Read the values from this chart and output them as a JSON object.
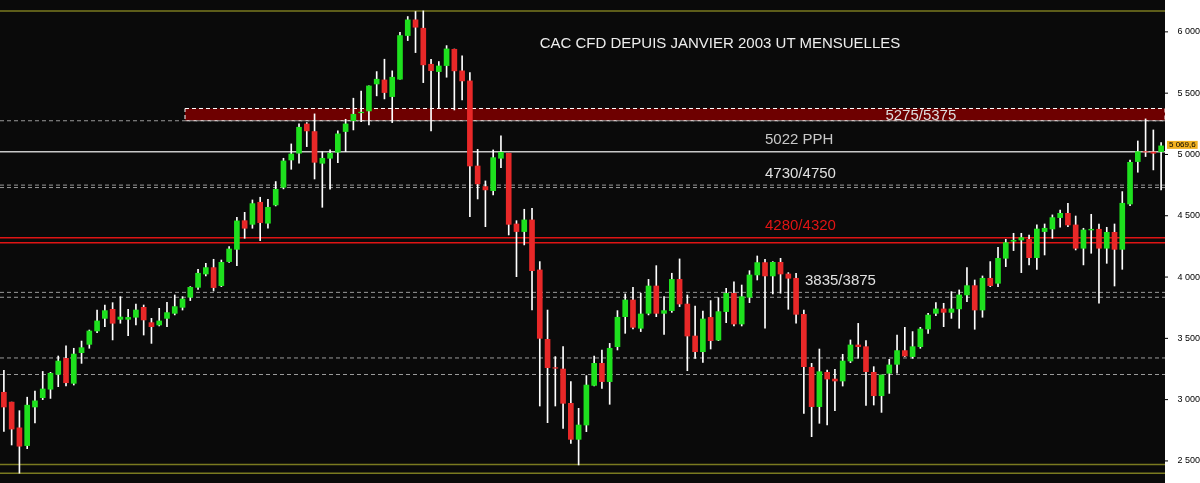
{
  "chart_data": {
    "type": "candlestick",
    "title": "CAC CFD DEPUIS JANVIER 2003 UT MENSUELLES",
    "categories": [
      null,
      null,
      null,
      null,
      null,
      null,
      null,
      null,
      null,
      null,
      null,
      null,
      null,
      null,
      null,
      null,
      null,
      null,
      null,
      null,
      null,
      null,
      null,
      null,
      null,
      null,
      null,
      null,
      null,
      null,
      null,
      null,
      null,
      null,
      null,
      null,
      null,
      null,
      null,
      null,
      null,
      null,
      null,
      null,
      null,
      null,
      null,
      null,
      null,
      null,
      null,
      null,
      null,
      null,
      null,
      null,
      null,
      null,
      null,
      null,
      null,
      null,
      null,
      null,
      null,
      null,
      null,
      null,
      null,
      null,
      null,
      null,
      null,
      null,
      null,
      null,
      null,
      null,
      null,
      null,
      null,
      null,
      null,
      null,
      null,
      null,
      null,
      null,
      null,
      null,
      null,
      null,
      null,
      null,
      null,
      null,
      null,
      null,
      null,
      null,
      null,
      null,
      null,
      null,
      null,
      null,
      null,
      null,
      null,
      null,
      null,
      null,
      null,
      null,
      null,
      null,
      null,
      null,
      null,
      null,
      null,
      null,
      null,
      null,
      null,
      null,
      null,
      null,
      null,
      null,
      null,
      null,
      null,
      null,
      null,
      null,
      null,
      null,
      null,
      null,
      null,
      null,
      null,
      null,
      null,
      null,
      null,
      null,
      null,
      null
    ],
    "ohlc": [
      [
        3060,
        3240,
        2740,
        2940
      ],
      [
        2980,
        2980,
        2630,
        2760
      ],
      [
        2770,
        2910,
        2400,
        2620
      ],
      [
        2625,
        3020,
        2600,
        2955
      ],
      [
        2940,
        3070,
        2810,
        2990
      ],
      [
        3016,
        3230,
        3000,
        3087
      ],
      [
        3085,
        3223,
        3010,
        3215
      ],
      [
        3206,
        3356,
        3106,
        3315
      ],
      [
        3337,
        3438,
        3111,
        3138
      ],
      [
        3133,
        3419,
        3119,
        3372
      ],
      [
        3383,
        3478,
        3296,
        3424
      ],
      [
        3451,
        3568,
        3419,
        3560
      ],
      [
        3560,
        3731,
        3547,
        3642
      ],
      [
        3663,
        3772,
        3595,
        3726
      ],
      [
        3737,
        3791,
        3487,
        3623
      ],
      [
        3655,
        3840,
        3623,
        3674
      ],
      [
        3655,
        3737,
        3522,
        3671
      ],
      [
        3672,
        3780,
        3609,
        3731
      ],
      [
        3753,
        3772,
        3527,
        3650
      ],
      [
        3628,
        3663,
        3459,
        3595
      ],
      [
        3609,
        3745,
        3601,
        3642
      ],
      [
        3663,
        3794,
        3595,
        3710
      ],
      [
        3704,
        3854,
        3691,
        3759
      ],
      [
        3753,
        3840,
        3731,
        3821
      ],
      [
        3835,
        3922,
        3808,
        3916
      ],
      [
        3916,
        4063,
        3900,
        4031
      ],
      [
        4025,
        4112,
        4009,
        4077
      ],
      [
        4077,
        4145,
        3886,
        3914
      ],
      [
        3930,
        4139,
        3922,
        4120
      ],
      [
        4126,
        4248,
        4120,
        4229
      ],
      [
        4226,
        4488,
        4093,
        4458
      ],
      [
        4460,
        4528,
        4316,
        4398
      ],
      [
        4430,
        4629,
        4398,
        4599
      ],
      [
        4610,
        4651,
        4297,
        4444
      ],
      [
        4439,
        4635,
        4398,
        4569
      ],
      [
        4588,
        4779,
        4580,
        4716
      ],
      [
        4732,
        4969,
        4719,
        4947
      ],
      [
        4955,
        5086,
        4879,
        5004
      ],
      [
        5010,
        5249,
        4928,
        5222
      ],
      [
        5249,
        5260,
        5064,
        5192
      ],
      [
        5187,
        5331,
        4800,
        4936
      ],
      [
        4928,
        5023,
        4569,
        4969
      ],
      [
        4969,
        5037,
        4716,
        5010
      ],
      [
        5018,
        5192,
        4934,
        5168
      ],
      [
        5187,
        5287,
        5023,
        5249
      ],
      [
        5276,
        5459,
        5200,
        5328
      ],
      [
        5340,
        5518,
        5268,
        5345
      ],
      [
        5355,
        5559,
        5241,
        5559
      ],
      [
        5575,
        5676,
        5478,
        5614
      ],
      [
        5608,
        5777,
        5453,
        5505
      ],
      [
        5472,
        5682,
        5260,
        5630
      ],
      [
        5614,
        5997,
        5614,
        5970
      ],
      [
        5970,
        6125,
        5929,
        6098
      ],
      [
        6098,
        6166,
        5831,
        6038
      ],
      [
        6030,
        6171,
        5586,
        5731
      ],
      [
        5736,
        5777,
        5192,
        5684
      ],
      [
        5676,
        5758,
        5377,
        5722
      ],
      [
        5725,
        5888,
        5630,
        5861
      ],
      [
        5858,
        5860,
        5363,
        5682
      ],
      [
        5682,
        5804,
        5445,
        5600
      ],
      [
        5600,
        5668,
        4493,
        4906
      ],
      [
        4906,
        5042,
        4637,
        4760
      ],
      [
        4738,
        4784,
        4411,
        4711
      ],
      [
        4705,
        5037,
        4670,
        4974
      ],
      [
        4969,
        5151,
        4893,
        5018
      ],
      [
        5010,
        5010,
        4343,
        4430
      ],
      [
        4433,
        4460,
        4003,
        4371
      ],
      [
        4371,
        4553,
        4262,
        4466
      ],
      [
        4466,
        4561,
        3731,
        4052
      ],
      [
        4058,
        4126,
        2948,
        3500
      ],
      [
        3492,
        3731,
        2812,
        3261
      ],
      [
        3261,
        3351,
        2948,
        3256
      ],
      [
        3250,
        3432,
        2766,
        2970
      ],
      [
        2970,
        3147,
        2643,
        2676
      ],
      [
        2676,
        2929,
        2467,
        2793
      ],
      [
        2793,
        3196,
        2739,
        3119
      ],
      [
        3116,
        3356,
        3111,
        3296
      ],
      [
        3296,
        3405,
        3092,
        3147
      ],
      [
        3147,
        3459,
        2962,
        3419
      ],
      [
        3432,
        3726,
        3405,
        3672
      ],
      [
        3677,
        3862,
        3541,
        3813
      ],
      [
        3813,
        3916,
        3576,
        3590
      ],
      [
        3582,
        3868,
        3555,
        3699
      ],
      [
        3704,
        3981,
        3691,
        3927
      ],
      [
        3927,
        4093,
        3677,
        3704
      ],
      [
        3704,
        3840,
        3533,
        3726
      ],
      [
        3726,
        4031,
        3712,
        3981
      ],
      [
        3981,
        4148,
        3759,
        3780
      ],
      [
        3780,
        3854,
        3236,
        3519
      ],
      [
        3519,
        3764,
        3337,
        3391
      ],
      [
        3391,
        3723,
        3304,
        3658
      ],
      [
        3671,
        3808,
        3413,
        3481
      ],
      [
        3486,
        3832,
        3481,
        3718
      ],
      [
        3718,
        3908,
        3628,
        3867
      ],
      [
        3867,
        3962,
        3601,
        3617
      ],
      [
        3617,
        3935,
        3601,
        3840
      ],
      [
        3835,
        4052,
        3791,
        4017
      ],
      [
        4017,
        4172,
        3976,
        4118
      ],
      [
        4118,
        4145,
        3582,
        4009
      ],
      [
        4009,
        4126,
        3862,
        4120
      ],
      [
        4120,
        4153,
        3868,
        4025
      ],
      [
        4025,
        4036,
        3737,
        3990
      ],
      [
        3990,
        4031,
        3623,
        3696
      ],
      [
        3696,
        3731,
        2888,
        3269
      ],
      [
        3264,
        3296,
        2698,
        2943
      ],
      [
        2943,
        3413,
        2807,
        3228
      ],
      [
        3223,
        3242,
        2793,
        3168
      ],
      [
        3168,
        3247,
        2910,
        3152
      ],
      [
        3152,
        3370,
        3111,
        3315
      ],
      [
        3315,
        3487,
        3302,
        3446
      ],
      [
        3446,
        3622,
        3337,
        3432
      ],
      [
        3432,
        3481,
        2952,
        3228
      ],
      [
        3223,
        3269,
        2956,
        3032
      ],
      [
        3032,
        3201,
        2896,
        3201
      ],
      [
        3215,
        3329,
        3051,
        3283
      ],
      [
        3288,
        3527,
        3215,
        3400
      ],
      [
        3400,
        3590,
        3351,
        3356
      ],
      [
        3351,
        3555,
        3337,
        3432
      ],
      [
        3432,
        3590,
        3419,
        3576
      ],
      [
        3576,
        3704,
        3541,
        3690
      ],
      [
        3704,
        3791,
        3685,
        3740
      ],
      [
        3740,
        3786,
        3595,
        3712
      ],
      [
        3712,
        3881,
        3663,
        3740
      ],
      [
        3740,
        3895,
        3582,
        3854
      ],
      [
        3854,
        4077,
        3799,
        3930
      ],
      [
        3930,
        3976,
        3574,
        3731
      ],
      [
        3731,
        4009,
        3672,
        3990
      ],
      [
        3990,
        4126,
        3922,
        3930
      ],
      [
        3949,
        4243,
        3922,
        4153
      ],
      [
        4153,
        4308,
        4085,
        4281
      ],
      [
        4292,
        4357,
        4216,
        4300
      ],
      [
        4302,
        4357,
        4036,
        4322
      ],
      [
        4308,
        4343,
        4099,
        4158
      ],
      [
        4158,
        4425,
        4063,
        4392
      ],
      [
        4371,
        4433,
        4180,
        4398
      ],
      [
        4392,
        4507,
        4316,
        4485
      ],
      [
        4485,
        4547,
        4406,
        4520
      ],
      [
        4520,
        4602,
        4411,
        4425
      ],
      [
        4425,
        4498,
        4221,
        4235
      ],
      [
        4235,
        4398,
        4099,
        4384
      ],
      [
        4384,
        4512,
        4194,
        4390
      ],
      [
        4390,
        4433,
        3786,
        4235
      ],
      [
        4235,
        4406,
        4112,
        4365
      ],
      [
        4365,
        4433,
        3927,
        4226
      ],
      [
        4226,
        4697,
        4063,
        4602
      ],
      [
        4596,
        4955,
        4583,
        4936
      ],
      [
        4942,
        5110,
        4855,
        5023
      ],
      [
        5023,
        5290,
        4983,
        5020
      ],
      [
        5020,
        5200,
        4874,
        5010
      ],
      [
        5023,
        5097,
        4711,
        5070
      ]
    ],
    "ylim": [
      2320,
      6260
    ],
    "yticks": [
      {
        "value": 2500,
        "label": "2 500"
      },
      {
        "value": 3000,
        "label": "3 000"
      },
      {
        "value": 3500,
        "label": "3 500"
      },
      {
        "value": 4000,
        "label": "4 000"
      },
      {
        "value": 4500,
        "label": "4 500"
      },
      {
        "value": 5000,
        "label": "5 000"
      },
      {
        "value": 5500,
        "label": "5 500"
      },
      {
        "value": 6000,
        "label": "6 000"
      }
    ],
    "tick_labels": "y",
    "bands": [
      {
        "axis": "y",
        "from": 5275,
        "to": 5375,
        "label": "5275/5375",
        "color": "#6e0000"
      }
    ],
    "ref_lines": [
      {
        "axis": "y",
        "value": 6170,
        "label": null,
        "color": "#7a7a20",
        "line_style": "solid"
      },
      {
        "axis": "y",
        "value": 2400,
        "label": null,
        "color": "#7a7a20",
        "line_style": "solid"
      },
      {
        "axis": "y",
        "value": 2470,
        "label": null,
        "color": "#7a7a20",
        "line_style": "solid"
      },
      {
        "axis": "y",
        "value": 5275,
        "label": null,
        "color": "#9a9a9a",
        "line_style": "dashed"
      },
      {
        "axis": "y",
        "value": 4750,
        "label": "4730/4750",
        "color": "#9a9a9a",
        "line_style": "dashed"
      },
      {
        "axis": "y",
        "value": 4730,
        "label": null,
        "color": "#9a9a9a",
        "line_style": "dashed"
      },
      {
        "axis": "y",
        "value": 4320,
        "label": "4280/4320",
        "color": "#e01414",
        "line_style": "solid"
      },
      {
        "axis": "y",
        "value": 4280,
        "label": null,
        "color": "#e01414",
        "line_style": "solid"
      },
      {
        "axis": "y",
        "value": 3875,
        "label": "3835/3875",
        "color": "#9a9a9a",
        "line_style": "dashed"
      },
      {
        "axis": "y",
        "value": 3835,
        "label": null,
        "color": "#9a9a9a",
        "line_style": "dashed"
      },
      {
        "axis": "y",
        "value": 3340,
        "label": null,
        "color": "#9a9a9a",
        "line_style": "dashed"
      },
      {
        "axis": "y",
        "value": 3205,
        "label": null,
        "color": "#9a9a9a",
        "line_style": "dashed"
      },
      {
        "axis": "y",
        "value": 5022,
        "label": "5022 PPH",
        "color": "#c8c8c8",
        "line_style": "solid"
      }
    ],
    "annotations": [
      "5 069,6"
    ]
  }
}
